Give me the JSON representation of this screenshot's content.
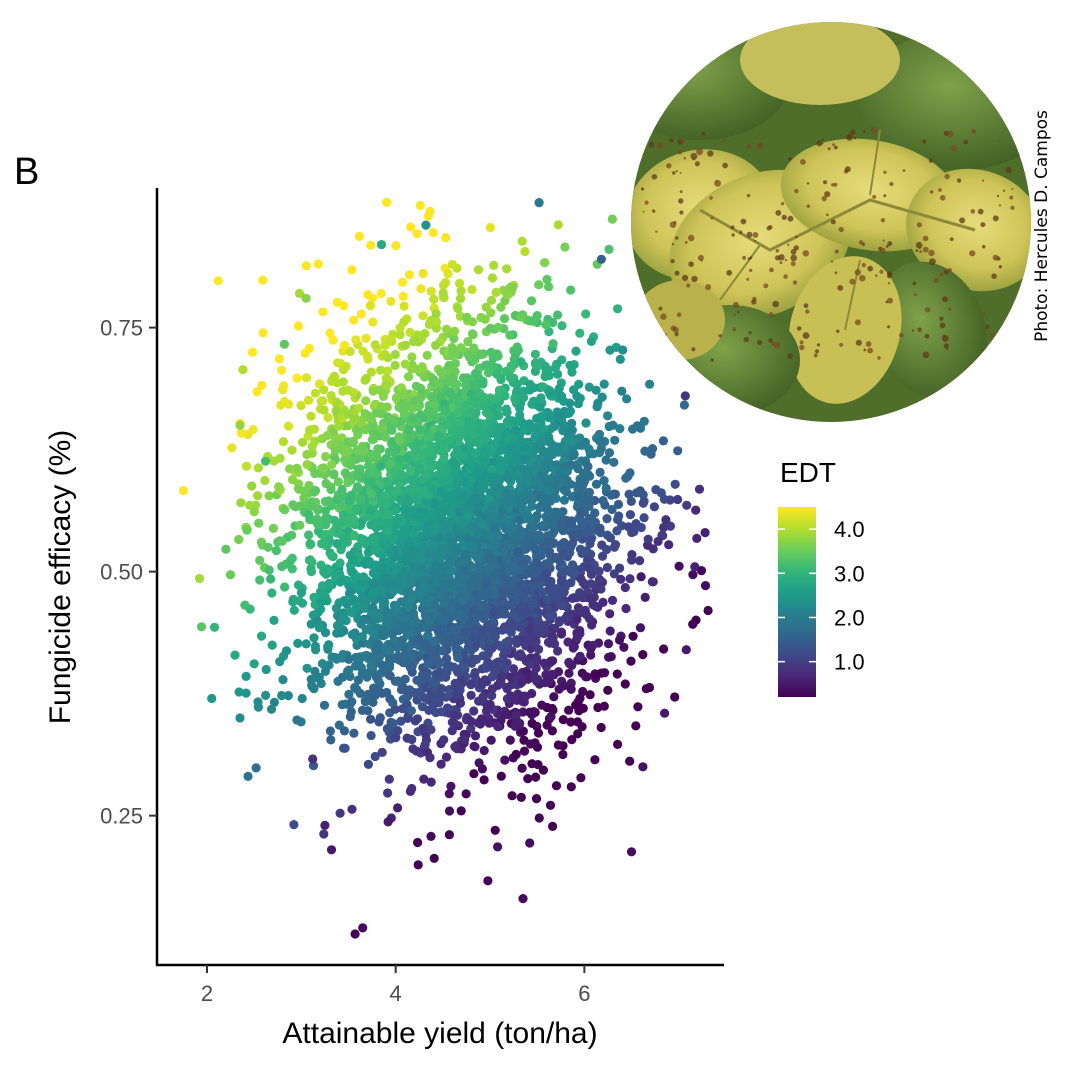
{
  "panel_label": "B",
  "photo_credit": "Photo: Hercules D. Campos",
  "chart_data": {
    "type": "scatter",
    "xlabel": "Attainable yield (ton/ha)",
    "ylabel": "Fungicide efficacy (%)",
    "xlim": [
      1.47,
      7.48
    ],
    "ylim": [
      0.097,
      0.893
    ],
    "x_ticks": [
      2,
      4,
      6
    ],
    "x_tick_labels": [
      "2",
      "4",
      "6"
    ],
    "y_ticks": [
      0.25,
      0.5,
      0.75
    ],
    "y_tick_labels": [
      "0.25",
      "0.50",
      "0.75"
    ],
    "grid": false,
    "color_variable": "EDT",
    "colorscale": "viridis",
    "color_range": [
      0.2,
      4.5
    ],
    "legend_title": "EDT",
    "legend_ticks": [
      1.0,
      2.0,
      3.0,
      4.0
    ],
    "legend_tick_labels": [
      "1.0",
      "2.0",
      "3.0",
      "4.0"
    ],
    "legend_position": "right",
    "cloud": {
      "n_points": 4600,
      "x_mean": 4.65,
      "x_sd": 0.85,
      "y_mean": 0.54,
      "y_sd": 0.105
    },
    "outliers": [
      {
        "x": 1.75,
        "y": 0.583,
        "edt": 4.5
      },
      {
        "x": 1.92,
        "y": 0.493,
        "edt": 3.9
      },
      {
        "x": 2.08,
        "y": 0.443,
        "edt": 3.0
      },
      {
        "x": 2.05,
        "y": 0.37,
        "edt": 2.5
      },
      {
        "x": 2.35,
        "y": 0.35,
        "edt": 2.3
      },
      {
        "x": 2.2,
        "y": 0.523,
        "edt": 3.4
      },
      {
        "x": 2.38,
        "y": 0.707,
        "edt": 4.0
      },
      {
        "x": 2.35,
        "y": 0.65,
        "edt": 3.8
      },
      {
        "x": 2.98,
        "y": 0.785,
        "edt": 3.9
      },
      {
        "x": 3.05,
        "y": 0.78,
        "edt": 3.7
      },
      {
        "x": 3.85,
        "y": 0.835,
        "edt": 2.8
      },
      {
        "x": 4.32,
        "y": 0.855,
        "edt": 2.4
      },
      {
        "x": 5.52,
        "y": 0.878,
        "edt": 1.9
      },
      {
        "x": 6.18,
        "y": 0.82,
        "edt": 1.5
      },
      {
        "x": 7.07,
        "y": 0.68,
        "edt": 0.9
      },
      {
        "x": 7.18,
        "y": 0.563,
        "edt": 0.7
      },
      {
        "x": 7.28,
        "y": 0.54,
        "edt": 0.6
      },
      {
        "x": 7.17,
        "y": 0.505,
        "edt": 0.6
      },
      {
        "x": 7.08,
        "y": 0.42,
        "edt": 0.5
      },
      {
        "x": 6.85,
        "y": 0.355,
        "edt": 0.5
      },
      {
        "x": 6.62,
        "y": 0.3,
        "edt": 0.4
      },
      {
        "x": 6.5,
        "y": 0.213,
        "edt": 0.35
      },
      {
        "x": 5.35,
        "y": 0.165,
        "edt": 0.3
      },
      {
        "x": 3.65,
        "y": 0.135,
        "edt": 0.3
      },
      {
        "x": 3.32,
        "y": 0.215,
        "edt": 0.5
      },
      {
        "x": 3.25,
        "y": 0.24,
        "edt": 0.6
      },
      {
        "x": 3.12,
        "y": 0.308,
        "edt": 0.8
      },
      {
        "x": 5.08,
        "y": 0.218,
        "edt": 0.4
      },
      {
        "x": 5.42,
        "y": 0.222,
        "edt": 0.35
      },
      {
        "x": 2.82,
        "y": 0.733,
        "edt": 3.4
      },
      {
        "x": 2.62,
        "y": 0.613,
        "edt": 3.2
      }
    ]
  }
}
